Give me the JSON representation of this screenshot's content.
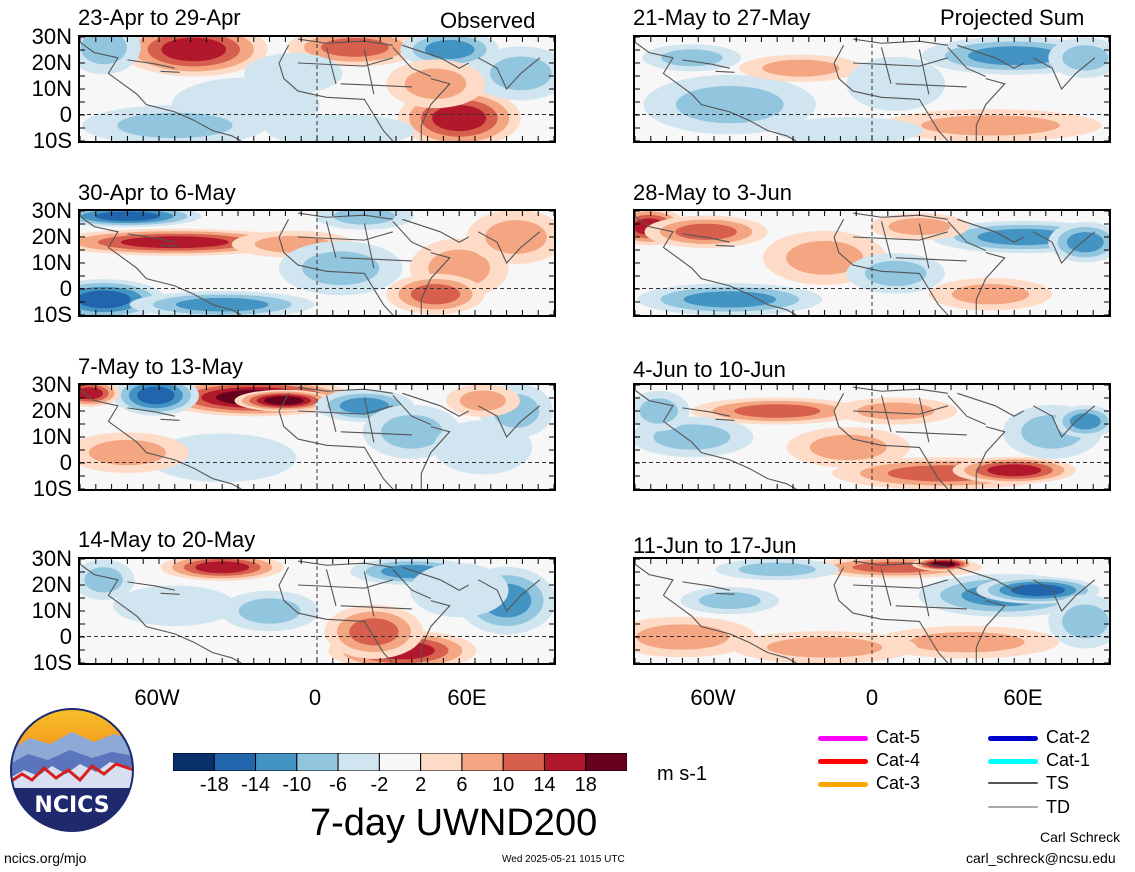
{
  "observed_label": "Observed",
  "projected_label": "Projected Sum",
  "observed_panels": [
    {
      "title": "23-Apr to 29-Apr"
    },
    {
      "title": "30-Apr to 6-May"
    },
    {
      "title": "7-May to 13-May"
    },
    {
      "title": "14-May to 20-May"
    }
  ],
  "projected_panels": [
    {
      "title": "21-May to 27-May"
    },
    {
      "title": "28-May to 3-Jun"
    },
    {
      "title": "4-Jun to 10-Jun"
    },
    {
      "title": "11-Jun to 17-Jun"
    }
  ],
  "lat_labels": [
    "30N",
    "20N",
    "10N",
    "0",
    "10S"
  ],
  "lon_labels": [
    "60W",
    "0",
    "60E"
  ],
  "colorbar": {
    "colors": [
      "#08306b",
      "#2166ac",
      "#4393c3",
      "#92c5de",
      "#d1e5f0",
      "#f7f7f7",
      "#fddbc7",
      "#f4a582",
      "#d6604d",
      "#b2182b",
      "#67001f"
    ],
    "ticks": [
      "-18",
      "-14",
      "-10",
      "-6",
      "-2",
      "2",
      "6",
      "10",
      "14",
      "18"
    ],
    "units": "m s-1"
  },
  "title": "7-day UWND200",
  "legend": [
    {
      "label": "Cat-5",
      "color": "#ff00ff"
    },
    {
      "label": "Cat-4",
      "color": "#ff0000"
    },
    {
      "label": "Cat-3",
      "color": "#ffa500"
    },
    {
      "label": "Cat-2",
      "color": "#0000cc"
    },
    {
      "label": "Cat-1",
      "color": "#00ffff"
    },
    {
      "label": "TS",
      "color": "#555555"
    },
    {
      "label": "TD",
      "color": "#aaaaaa"
    }
  ],
  "logo_text": "NCICS",
  "site_url": "ncics.org/mjo",
  "timestamp": "Wed 2025-05-21 1015 UTC",
  "author": "Carl Schreck",
  "email": "carl_schreck@ncsu.edu"
}
